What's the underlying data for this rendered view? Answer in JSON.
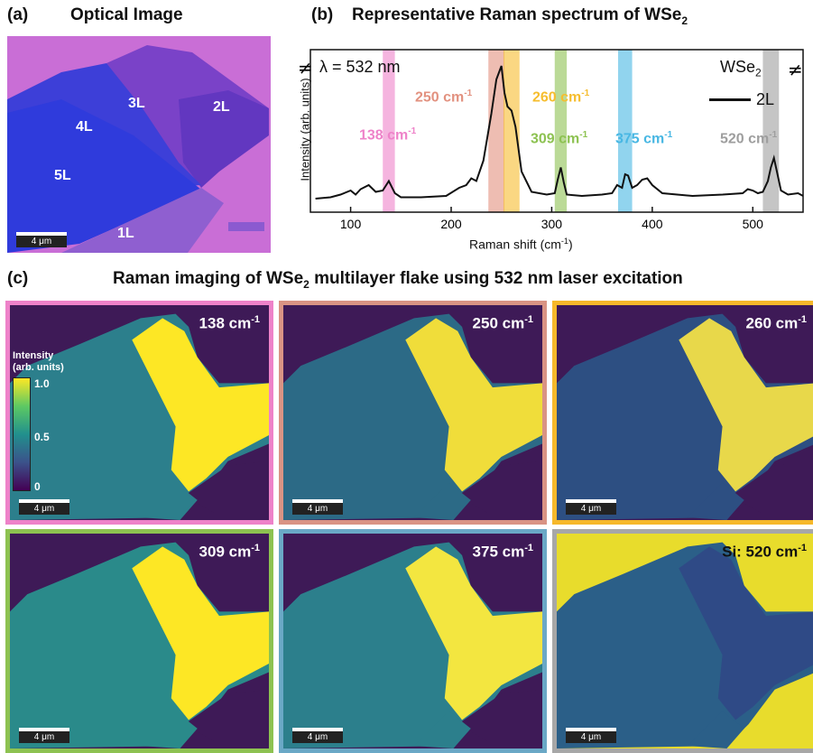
{
  "panel_a": {
    "label": "(a)",
    "title": "Optical Image",
    "layers": [
      "1L",
      "2L",
      "3L",
      "4L",
      "5L"
    ],
    "scale_bar": "4 μm"
  },
  "panel_b": {
    "label": "(b)",
    "title_main": "Representative Raman spectrum of WSe",
    "title_sub": "2",
    "wavelength": "λ = 532 nm",
    "material_main": "WSe",
    "material_sub": "2",
    "legend": "2L",
    "peaks": [
      {
        "pos": "138",
        "unit": "cm",
        "exp": "-1",
        "color": "#ee82c9"
      },
      {
        "pos": "250",
        "unit": "cm",
        "exp": "-1",
        "color": "#e2917f"
      },
      {
        "pos": "260",
        "unit": "cm",
        "exp": "-1",
        "color": "#f6bd2e"
      },
      {
        "pos": "309",
        "unit": "cm",
        "exp": "-1",
        "color": "#8dc251"
      },
      {
        "pos": "375",
        "unit": "cm",
        "exp": "-1",
        "color": "#48b7e3"
      },
      {
        "pos": "520",
        "unit": "cm",
        "exp": "-1",
        "color": "#9e9e9e"
      }
    ]
  },
  "chart_data": {
    "type": "line",
    "title": "Representative Raman spectrum of WSe2",
    "xlabel": "Raman shift (cm-1)",
    "ylabel": "Intensity (arb. units)",
    "xlim": [
      60,
      550
    ],
    "xticks": [
      "100",
      "200",
      "300",
      "400",
      "500"
    ],
    "xlabel_main": "Raman shift (cm",
    "xlabel_exp": "-1",
    "xlabel_end": ")",
    "series": [
      {
        "name": "2L",
        "x": [
          65,
          80,
          90,
          100,
          105,
          110,
          118,
          125,
          132,
          138,
          144,
          150,
          170,
          195,
          208,
          215,
          220,
          225,
          232,
          240,
          245,
          250,
          253,
          256,
          260,
          264,
          270,
          280,
          295,
          303,
          306,
          309,
          312,
          315,
          330,
          350,
          360,
          365,
          370,
          373,
          376,
          380,
          385,
          390,
          395,
          400,
          410,
          440,
          470,
          490,
          495,
          500,
          505,
          510,
          515,
          518,
          521,
          524,
          528,
          535,
          545,
          550
        ],
        "y": [
          0.02,
          0.03,
          0.05,
          0.08,
          0.05,
          0.09,
          0.12,
          0.07,
          0.08,
          0.15,
          0.06,
          0.03,
          0.03,
          0.04,
          0.1,
          0.12,
          0.17,
          0.15,
          0.3,
          0.65,
          0.9,
          1.0,
          0.8,
          0.7,
          0.67,
          0.55,
          0.22,
          0.07,
          0.05,
          0.06,
          0.16,
          0.25,
          0.14,
          0.05,
          0.04,
          0.05,
          0.06,
          0.12,
          0.1,
          0.2,
          0.19,
          0.1,
          0.12,
          0.16,
          0.17,
          0.12,
          0.06,
          0.04,
          0.05,
          0.06,
          0.09,
          0.08,
          0.06,
          0.07,
          0.15,
          0.25,
          0.32,
          0.22,
          0.08,
          0.05,
          0.06,
          0.04
        ]
      }
    ],
    "highlight_bands": [
      {
        "x": 138,
        "width": 12,
        "color": "#ee82c9"
      },
      {
        "x": 245,
        "width": 16,
        "color": "#e2917f"
      },
      {
        "x": 260,
        "width": 16,
        "color": "#f6bd2e"
      },
      {
        "x": 309,
        "width": 12,
        "color": "#8dc251"
      },
      {
        "x": 373,
        "width": 14,
        "color": "#48b7e3"
      },
      {
        "x": 518,
        "width": 16,
        "color": "#9e9e9e"
      }
    ]
  },
  "panel_c": {
    "label": "(c)",
    "title_main": "Raman imaging of WSe",
    "title_sub": "2",
    "title_end": " multilayer flake using 532 nm laser excitation",
    "colorbar": {
      "title_line1": "Intensity",
      "title_line2": "(arb. units)",
      "max": "1.0",
      "mid": "0.5",
      "min": "0"
    },
    "tiles": [
      {
        "label": "138 cm",
        "exp": "-1",
        "border": "#ee82c9"
      },
      {
        "label": "250 cm",
        "exp": "-1",
        "border": "#d99384"
      },
      {
        "label": "260 cm",
        "exp": "-1",
        "border": "#f6b82a"
      },
      {
        "label": "309 cm",
        "exp": "-1",
        "border": "#8dc251"
      },
      {
        "label": "375 cm",
        "exp": "-1",
        "border": "#6aa8c6"
      },
      {
        "label": "Si: 520 cm",
        "exp": "-1",
        "border": "#a7a7a7"
      }
    ],
    "scale_bar": "4 μm"
  },
  "colors": {
    "viridis_dark": "#3e1a57",
    "viridis_mid": "#2c7f8c",
    "viridis_light": "#fde725"
  }
}
